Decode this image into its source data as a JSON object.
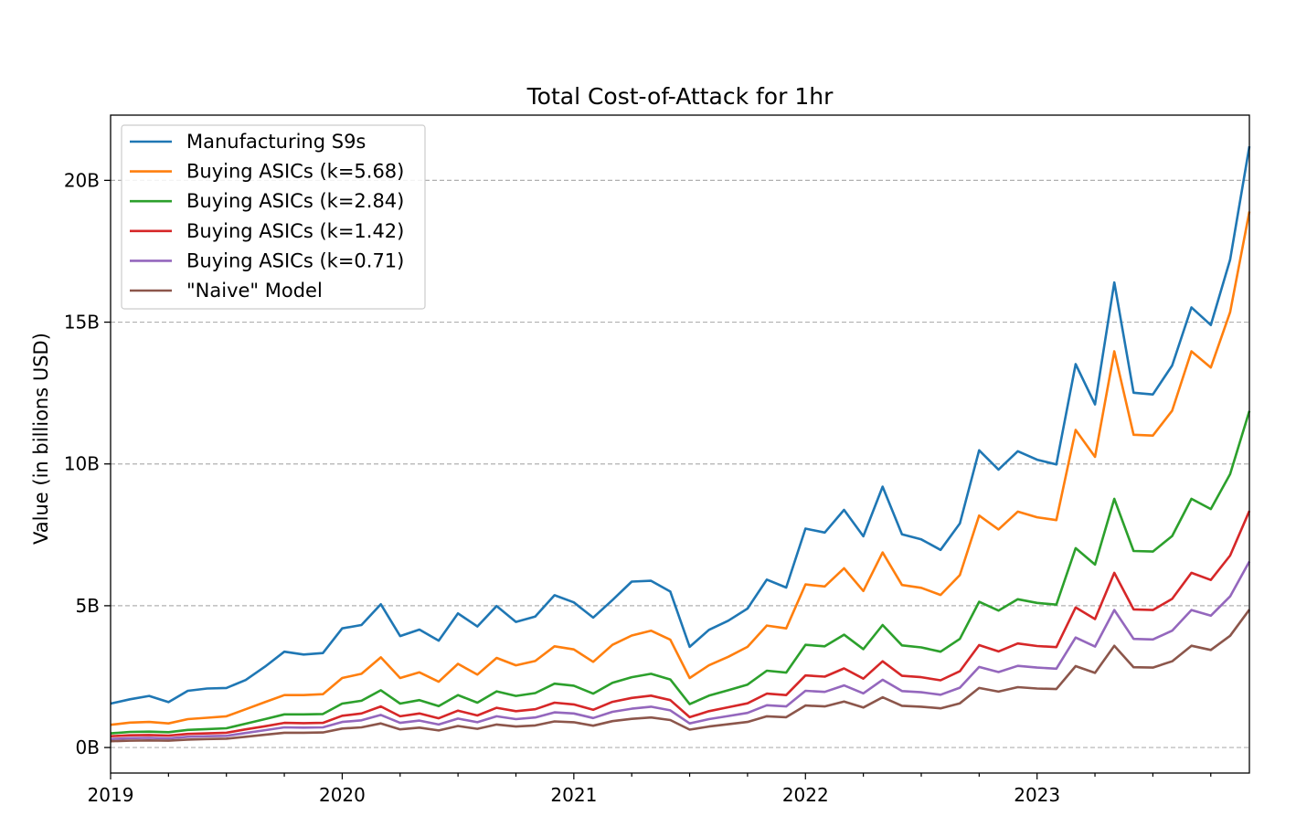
{
  "chart_data": {
    "type": "line",
    "title": "Total Cost-of-Attack for 1hr",
    "xlabel": "",
    "ylabel": "Value (in billions USD)",
    "x_start": "2019-01",
    "x_end": "2023-12",
    "x_ticks": [
      "2019",
      "2020",
      "2021",
      "2022",
      "2023"
    ],
    "y_ticks": [
      "0B",
      "5B",
      "10B",
      "15B",
      "20B"
    ],
    "ylim": [
      -0.9,
      22.3
    ],
    "grid": "y-dashed",
    "legend_position": "top-left",
    "series": [
      {
        "name": "Manufacturing S9s",
        "color": "#1f77b4",
        "values": [
          1.55,
          1.7,
          1.82,
          1.6,
          2.0,
          2.08,
          2.1,
          2.38,
          2.85,
          3.38,
          3.28,
          3.33,
          4.2,
          4.32,
          5.05,
          3.93,
          4.16,
          3.77,
          4.73,
          4.27,
          4.99,
          4.43,
          4.62,
          5.37,
          5.12,
          4.58,
          5.2,
          5.85,
          5.88,
          5.5,
          3.55,
          4.15,
          4.47,
          4.9,
          5.92,
          5.64,
          7.72,
          7.58,
          8.38,
          7.45,
          9.2,
          7.52,
          7.34,
          6.97,
          7.9,
          10.48,
          9.8,
          10.45,
          10.15,
          9.98,
          13.52,
          12.1,
          16.4,
          12.51,
          12.45,
          13.47,
          15.52,
          14.9,
          17.2,
          21.2
        ]
      },
      {
        "name": "Buying ASICs (k=5.68)",
        "color": "#ff7f0e",
        "values": [
          0.8,
          0.88,
          0.9,
          0.85,
          1.0,
          1.05,
          1.1,
          1.35,
          1.6,
          1.85,
          1.85,
          1.88,
          2.45,
          2.6,
          3.18,
          2.45,
          2.65,
          2.32,
          2.95,
          2.57,
          3.16,
          2.9,
          3.05,
          3.57,
          3.46,
          3.02,
          3.62,
          3.95,
          4.12,
          3.8,
          2.45,
          2.9,
          3.2,
          3.55,
          4.3,
          4.2,
          5.75,
          5.68,
          6.32,
          5.52,
          6.88,
          5.73,
          5.63,
          5.38,
          6.08,
          8.18,
          7.69,
          8.32,
          8.12,
          8.02,
          11.2,
          10.25,
          13.97,
          11.03,
          11.0,
          11.88,
          13.97,
          13.4,
          15.35,
          18.9
        ]
      },
      {
        "name": "Buying ASICs (k=2.84)",
        "color": "#2ca02c",
        "values": [
          0.5,
          0.55,
          0.56,
          0.54,
          0.62,
          0.65,
          0.68,
          0.84,
          1.0,
          1.17,
          1.17,
          1.18,
          1.55,
          1.65,
          2.02,
          1.55,
          1.67,
          1.46,
          1.85,
          1.58,
          1.98,
          1.82,
          1.92,
          2.25,
          2.18,
          1.9,
          2.28,
          2.48,
          2.6,
          2.4,
          1.53,
          1.83,
          2.02,
          2.22,
          2.71,
          2.64,
          3.62,
          3.57,
          3.98,
          3.47,
          4.32,
          3.6,
          3.53,
          3.38,
          3.83,
          5.14,
          4.83,
          5.23,
          5.1,
          5.04,
          7.03,
          6.45,
          8.77,
          6.93,
          6.91,
          7.46,
          8.77,
          8.41,
          9.64,
          11.87
        ]
      },
      {
        "name": "Buying ASICs (k=1.42)",
        "color": "#d62728",
        "values": [
          0.4,
          0.43,
          0.44,
          0.42,
          0.48,
          0.5,
          0.52,
          0.64,
          0.75,
          0.87,
          0.86,
          0.87,
          1.12,
          1.2,
          1.45,
          1.1,
          1.2,
          1.03,
          1.3,
          1.13,
          1.4,
          1.28,
          1.35,
          1.58,
          1.52,
          1.33,
          1.61,
          1.75,
          1.83,
          1.67,
          1.07,
          1.28,
          1.42,
          1.56,
          1.9,
          1.85,
          2.54,
          2.5,
          2.79,
          2.43,
          3.04,
          2.53,
          2.48,
          2.37,
          2.69,
          3.61,
          3.39,
          3.67,
          3.58,
          3.54,
          4.94,
          4.53,
          6.16,
          4.87,
          4.85,
          5.24,
          6.16,
          5.91,
          6.77,
          8.34
        ]
      },
      {
        "name": "Buying ASICs (k=0.71)",
        "color": "#9467bd",
        "values": [
          0.3,
          0.33,
          0.34,
          0.32,
          0.38,
          0.4,
          0.41,
          0.51,
          0.61,
          0.71,
          0.7,
          0.71,
          0.9,
          0.96,
          1.15,
          0.87,
          0.95,
          0.81,
          1.02,
          0.89,
          1.1,
          1.0,
          1.06,
          1.24,
          1.2,
          1.04,
          1.26,
          1.37,
          1.44,
          1.31,
          0.85,
          1.0,
          1.11,
          1.22,
          1.49,
          1.45,
          2.0,
          1.96,
          2.19,
          1.91,
          2.39,
          1.99,
          1.95,
          1.86,
          2.11,
          2.84,
          2.66,
          2.88,
          2.82,
          2.78,
          3.88,
          3.56,
          4.85,
          3.83,
          3.81,
          4.12,
          4.85,
          4.65,
          5.33,
          6.56
        ]
      },
      {
        "name": "\"Naive\" Model",
        "color": "#8c564b",
        "values": [
          0.22,
          0.24,
          0.25,
          0.24,
          0.28,
          0.3,
          0.31,
          0.38,
          0.45,
          0.52,
          0.52,
          0.53,
          0.67,
          0.71,
          0.85,
          0.64,
          0.7,
          0.6,
          0.76,
          0.66,
          0.81,
          0.74,
          0.78,
          0.92,
          0.89,
          0.77,
          0.93,
          1.01,
          1.06,
          0.97,
          0.63,
          0.74,
          0.82,
          0.9,
          1.1,
          1.07,
          1.48,
          1.45,
          1.62,
          1.41,
          1.77,
          1.47,
          1.44,
          1.38,
          1.56,
          2.1,
          1.97,
          2.13,
          2.08,
          2.06,
          2.87,
          2.63,
          3.59,
          2.83,
          2.82,
          3.04,
          3.59,
          3.44,
          3.94,
          4.86
        ]
      }
    ]
  }
}
